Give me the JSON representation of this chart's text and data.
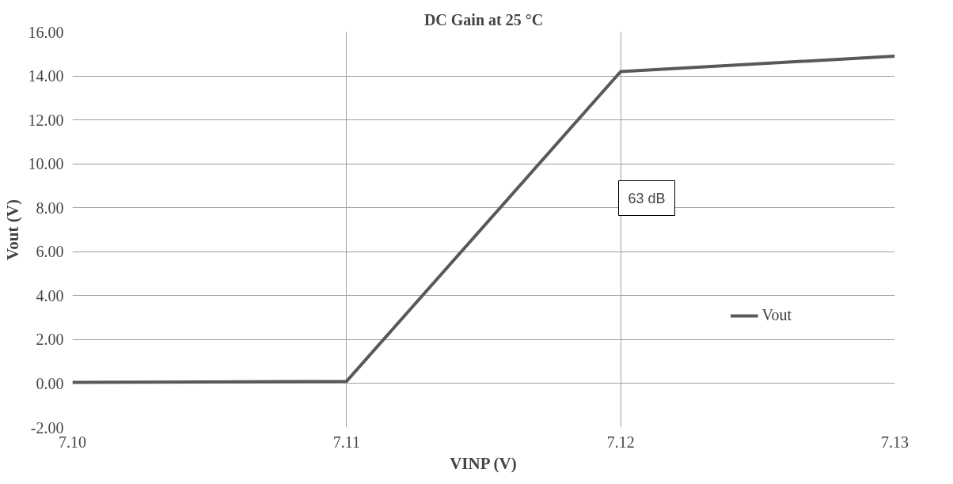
{
  "chart_data": {
    "type": "line",
    "title": "DC Gain at 25 °C",
    "xlabel": "VINP (V)",
    "ylabel": "Vout (V)",
    "x": [
      7.1,
      7.11,
      7.12,
      7.13
    ],
    "series": [
      {
        "name": "Vout",
        "color": "#595959",
        "values": [
          0.05,
          0.1,
          14.2,
          14.9
        ]
      }
    ],
    "xlim": [
      7.1,
      7.13
    ],
    "xticks": [
      {
        "value": 7.1,
        "label": "7.10"
      },
      {
        "value": 7.11,
        "label": "7.11"
      },
      {
        "value": 7.12,
        "label": "7.12"
      },
      {
        "value": 7.13,
        "label": "7.13"
      }
    ],
    "ylim": [
      -2,
      16
    ],
    "yticks": [
      {
        "value": -2,
        "label": "-2.00"
      },
      {
        "value": 0,
        "label": "0.00"
      },
      {
        "value": 2,
        "label": "2.00"
      },
      {
        "value": 4,
        "label": "4.00"
      },
      {
        "value": 6,
        "label": "6.00"
      },
      {
        "value": 8,
        "label": "8.00"
      },
      {
        "value": 10,
        "label": "10.00"
      },
      {
        "value": 12,
        "label": "12.00"
      },
      {
        "value": 14,
        "label": "14.00"
      },
      {
        "value": 16,
        "label": "16.00"
      }
    ],
    "annotations": [
      "63 dB"
    ],
    "grid": true,
    "legend": "bottom right",
    "marker": "none",
    "line_style": "solid"
  }
}
